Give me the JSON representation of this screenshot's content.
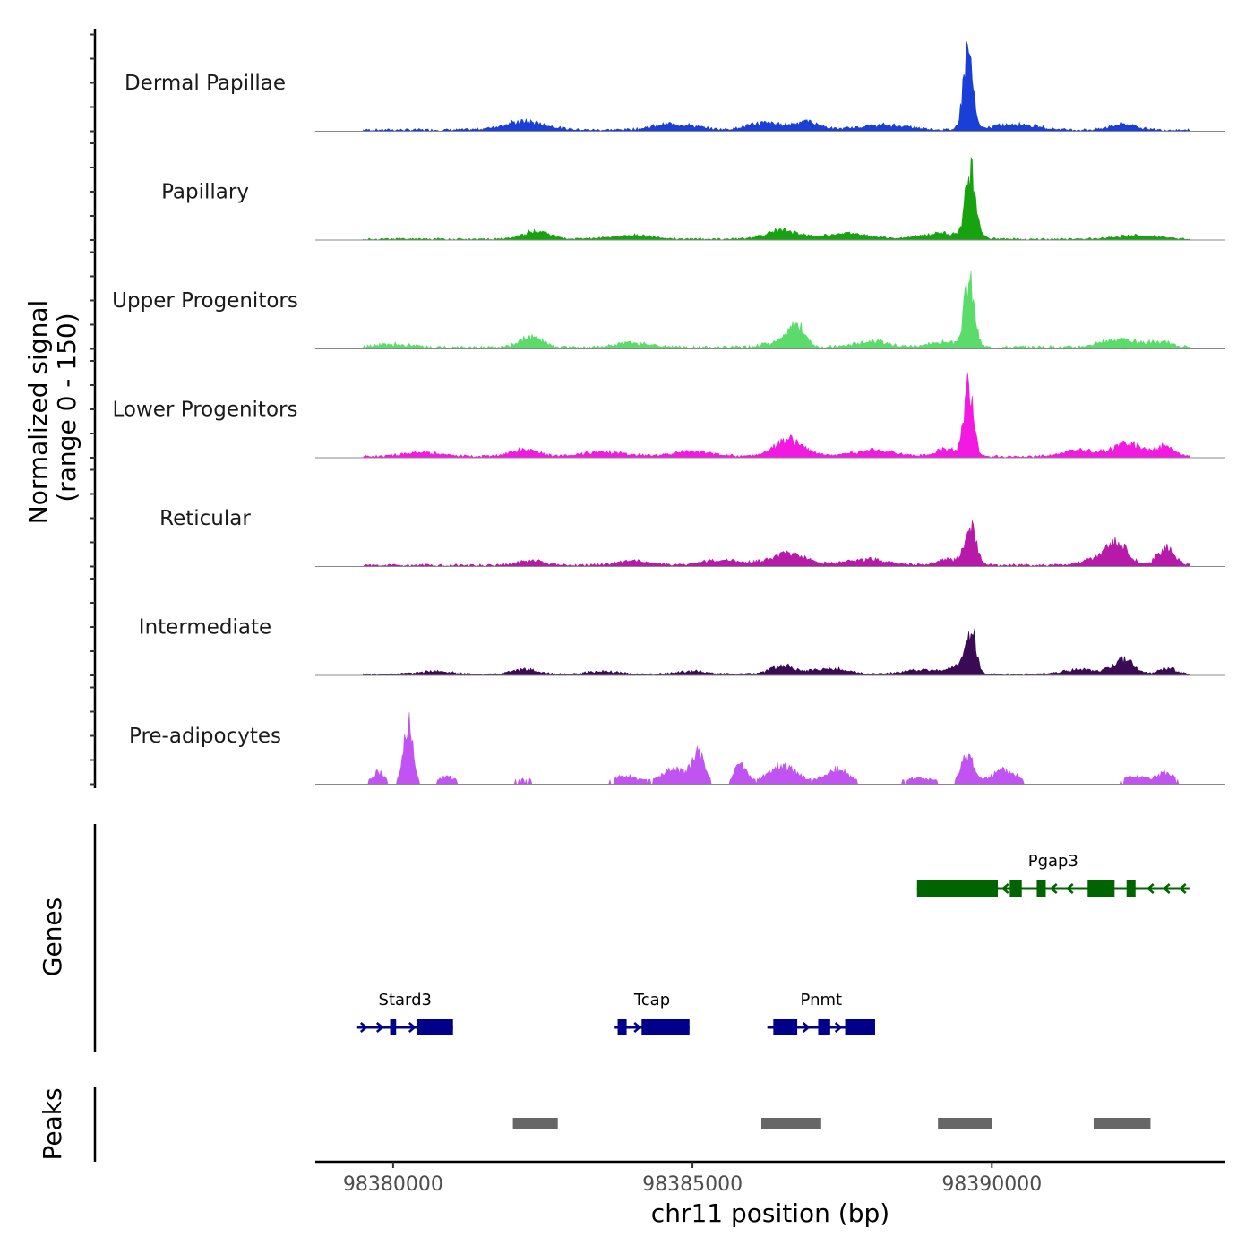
{
  "chart_data": {
    "type": "area",
    "title": "",
    "chromosome": "chr11",
    "xlabel": "chr11 position (bp)",
    "ylabel_line1": "Normalized signal",
    "ylabel_line2": "(range 0 - 150)",
    "ylim": [
      0,
      150
    ],
    "xlim": [
      98378700,
      98393900
    ],
    "x_ticks": [
      98380000,
      98385000,
      98390000
    ],
    "x_tick_labels": [
      "98380000",
      "98385000",
      "98390000"
    ],
    "data_extent": [
      98379500,
      98393300
    ],
    "tracks": [
      {
        "name": "Dermal Papillae",
        "color": "#1a3fd6",
        "peaks": [
          [
            98382200,
            14,
            500
          ],
          [
            98384700,
            10,
            500
          ],
          [
            98386200,
            12,
            400
          ],
          [
            98386900,
            14,
            300
          ],
          [
            98388200,
            8,
            600
          ],
          [
            98389600,
            132,
            110
          ],
          [
            98390400,
            10,
            500
          ],
          [
            98392200,
            10,
            300
          ]
        ],
        "baseline": 4
      },
      {
        "name": "Papillary",
        "color": "#16a30f",
        "peaks": [
          [
            98382400,
            14,
            300
          ],
          [
            98384000,
            6,
            500
          ],
          [
            98386500,
            14,
            400
          ],
          [
            98387600,
            10,
            500
          ],
          [
            98389200,
            10,
            500
          ],
          [
            98389650,
            110,
            120
          ],
          [
            98392400,
            6,
            500
          ]
        ],
        "baseline": 3
      },
      {
        "name": "Upper Progenitors",
        "color": "#5bdc6a",
        "peaks": [
          [
            98380000,
            5,
            400
          ],
          [
            98382300,
            18,
            250
          ],
          [
            98384000,
            7,
            400
          ],
          [
            98386500,
            10,
            400
          ],
          [
            98386750,
            32,
            180
          ],
          [
            98388000,
            10,
            400
          ],
          [
            98389200,
            8,
            400
          ],
          [
            98389620,
            105,
            120
          ],
          [
            98392100,
            14,
            400
          ],
          [
            98392800,
            8,
            300
          ]
        ],
        "baseline": 5
      },
      {
        "name": "Lower Progenitors",
        "color": "#f21ae0",
        "peaks": [
          [
            98380500,
            6,
            500
          ],
          [
            98382200,
            12,
            300
          ],
          [
            98383500,
            8,
            500
          ],
          [
            98385000,
            8,
            500
          ],
          [
            98386600,
            28,
            350
          ],
          [
            98388000,
            10,
            500
          ],
          [
            98389250,
            14,
            250
          ],
          [
            98389620,
            120,
            110
          ],
          [
            98391500,
            10,
            400
          ],
          [
            98392300,
            22,
            350
          ],
          [
            98392900,
            16,
            200
          ]
        ],
        "baseline": 4
      },
      {
        "name": "Reticular",
        "color": "#b51aa8",
        "peaks": [
          [
            98382300,
            8,
            300
          ],
          [
            98384000,
            7,
            400
          ],
          [
            98385500,
            8,
            500
          ],
          [
            98386600,
            20,
            400
          ],
          [
            98387900,
            10,
            500
          ],
          [
            98389300,
            10,
            300
          ],
          [
            98389650,
            60,
            130
          ],
          [
            98391700,
            10,
            300
          ],
          [
            98392100,
            36,
            250
          ],
          [
            98392900,
            28,
            200
          ]
        ],
        "baseline": 4
      },
      {
        "name": "Intermediate",
        "color": "#3b0a55",
        "peaks": [
          [
            98380700,
            5,
            400
          ],
          [
            98382200,
            8,
            300
          ],
          [
            98383500,
            5,
            400
          ],
          [
            98385000,
            5,
            400
          ],
          [
            98386500,
            14,
            300
          ],
          [
            98387300,
            10,
            400
          ],
          [
            98388800,
            8,
            400
          ],
          [
            98389400,
            12,
            200
          ],
          [
            98389650,
            75,
            120
          ],
          [
            98391500,
            8,
            400
          ],
          [
            98392200,
            24,
            250
          ],
          [
            98392950,
            10,
            200
          ]
        ],
        "baseline": 3
      },
      {
        "name": "Pre-adipocytes",
        "color": "#c053f2",
        "peaks": [
          [
            98379750,
            20,
            150
          ],
          [
            98380250,
            100,
            110
          ],
          [
            98380900,
            12,
            200
          ],
          [
            98382200,
            8,
            300
          ],
          [
            98383900,
            14,
            300
          ],
          [
            98384700,
            24,
            300
          ],
          [
            98385100,
            50,
            150
          ],
          [
            98385800,
            30,
            150
          ],
          [
            98386500,
            30,
            350
          ],
          [
            98387400,
            24,
            300
          ],
          [
            98388800,
            10,
            400
          ],
          [
            98389600,
            50,
            150
          ],
          [
            98390200,
            24,
            300
          ],
          [
            98392400,
            12,
            300
          ],
          [
            98392900,
            18,
            200
          ]
        ],
        "baseline": 0
      }
    ],
    "genes_title": "Genes",
    "genes": [
      {
        "name": "Pgap3",
        "start": 98388750,
        "end": 98393300,
        "strand": "-",
        "color": "#006400",
        "exons": [
          [
            98388750,
            98390100
          ],
          [
            98390300,
            98390500
          ],
          [
            98390750,
            98390900
          ],
          [
            98391600,
            98392050
          ],
          [
            98392250,
            98392400
          ]
        ]
      },
      {
        "name": "Stard3",
        "start": 98379400,
        "end": 98381000,
        "strand": "+",
        "color": "#00008b",
        "exons": [
          [
            98379950,
            98380050
          ],
          [
            98380400,
            98381000
          ]
        ]
      },
      {
        "name": "Tcap",
        "start": 98383700,
        "end": 98384950,
        "strand": "+",
        "color": "#00008b",
        "exons": [
          [
            98383750,
            98383900
          ],
          [
            98384150,
            98384950
          ]
        ]
      },
      {
        "name": "Pnmt",
        "start": 98386250,
        "end": 98388050,
        "strand": "+",
        "color": "#00008b",
        "exons": [
          [
            98386350,
            98386750
          ],
          [
            98387100,
            98387300
          ],
          [
            98387550,
            98388050
          ]
        ]
      }
    ],
    "peaks_title": "Peaks",
    "peak_regions": [
      [
        98382000,
        98382750
      ],
      [
        98386150,
        98387150
      ],
      [
        98389100,
        98390000
      ],
      [
        98391700,
        98392650
      ]
    ],
    "peak_color": "#666666"
  }
}
